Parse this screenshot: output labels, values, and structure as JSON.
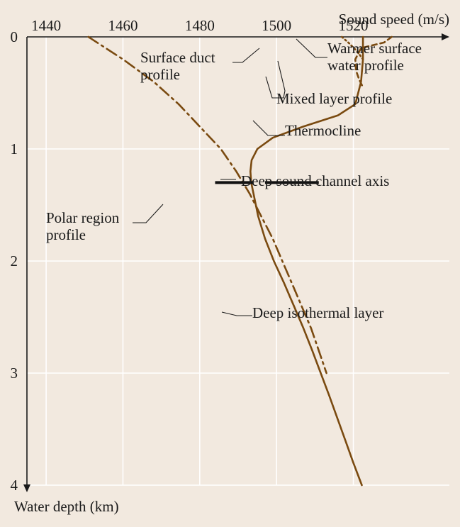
{
  "colors": {
    "background": "#f2e9df",
    "grid": "#ffffff",
    "axis": "#1a1a1a",
    "curve": "#7a4a10",
    "channel_axis": "#111111"
  },
  "chart_data": {
    "type": "line",
    "title": "",
    "xlabel": "Sound speed (m/s)",
    "ylabel": "Water depth (km)",
    "x_position": "top",
    "y_direction": "downward",
    "xlim": [
      1435,
      1545
    ],
    "ylim": [
      0,
      4
    ],
    "x_ticks": [
      "1440",
      "1460",
      "1480",
      "1500",
      "1520"
    ],
    "y_ticks": [
      "0",
      "1",
      "2",
      "3",
      "4"
    ],
    "grid": true,
    "series": [
      {
        "id": "main",
        "line_style": "solid",
        "points": [
          [
            1522.5,
            0.0
          ],
          [
            1522.5,
            0.2
          ],
          [
            1522.0,
            0.4
          ],
          [
            1520.5,
            0.6
          ],
          [
            1516.0,
            0.7
          ],
          [
            1507.0,
            0.8
          ],
          [
            1499.0,
            0.9
          ],
          [
            1495.0,
            1.0
          ],
          [
            1493.5,
            1.1
          ],
          [
            1493.2,
            1.2
          ],
          [
            1493.4,
            1.3
          ],
          [
            1494.0,
            1.4
          ],
          [
            1495.2,
            1.6
          ],
          [
            1497.0,
            1.8
          ],
          [
            1499.3,
            2.0
          ],
          [
            1502.0,
            2.2
          ],
          [
            1504.5,
            2.4
          ],
          [
            1507.0,
            2.6
          ],
          [
            1509.3,
            2.8
          ],
          [
            1511.5,
            3.0
          ],
          [
            1513.7,
            3.2
          ],
          [
            1515.8,
            3.4
          ],
          [
            1517.9,
            3.6
          ],
          [
            1520.0,
            3.8
          ],
          [
            1522.2,
            4.0
          ]
        ]
      },
      {
        "id": "polar",
        "line_style": "dash-dot",
        "points": [
          [
            1451.0,
            0.0
          ],
          [
            1460.0,
            0.2
          ],
          [
            1468.0,
            0.4
          ],
          [
            1474.5,
            0.6
          ],
          [
            1480.0,
            0.8
          ],
          [
            1485.5,
            1.0
          ],
          [
            1489.5,
            1.2
          ],
          [
            1493.0,
            1.4
          ],
          [
            1496.0,
            1.6
          ],
          [
            1499.0,
            1.8
          ],
          [
            1501.5,
            2.0
          ],
          [
            1504.0,
            2.2
          ],
          [
            1506.5,
            2.4
          ],
          [
            1509.0,
            2.6
          ],
          [
            1511.0,
            2.8
          ],
          [
            1513.0,
            3.0
          ]
        ]
      },
      {
        "id": "surface_duct",
        "line_style": "dotted",
        "points": [
          [
            1517.0,
            0.0
          ],
          [
            1519.0,
            0.06
          ],
          [
            1521.0,
            0.13
          ],
          [
            1522.5,
            0.2
          ]
        ]
      },
      {
        "id": "warm_surface",
        "line_style": "dashed",
        "points": [
          [
            1530.0,
            0.0
          ],
          [
            1528.0,
            0.05
          ],
          [
            1522.0,
            0.1
          ],
          [
            1520.5,
            0.2
          ],
          [
            1520.7,
            0.3
          ],
          [
            1521.5,
            0.38
          ],
          [
            1522.5,
            0.45
          ]
        ]
      }
    ],
    "channel_axis_marker": {
      "depth": 1.3,
      "x_from": 1484,
      "x_to": 1511,
      "gap_from": 1494,
      "gap_to": 1497
    },
    "annotations": [
      {
        "id": "surface-duct",
        "lines": [
          "Surface duct",
          "profile"
        ]
      },
      {
        "id": "warmer-surface",
        "lines": [
          "Warmer surface",
          "water profile"
        ]
      },
      {
        "id": "mixed-layer",
        "lines": [
          "Mixed layer profile"
        ]
      },
      {
        "id": "thermocline",
        "lines": [
          "Thermocline"
        ]
      },
      {
        "id": "deep-channel",
        "lines": [
          "Deep sound channel axis"
        ]
      },
      {
        "id": "polar-region",
        "lines": [
          "Polar region",
          "profile"
        ]
      },
      {
        "id": "deep-isothermal",
        "lines": [
          "Deep isothermal layer"
        ]
      }
    ]
  }
}
